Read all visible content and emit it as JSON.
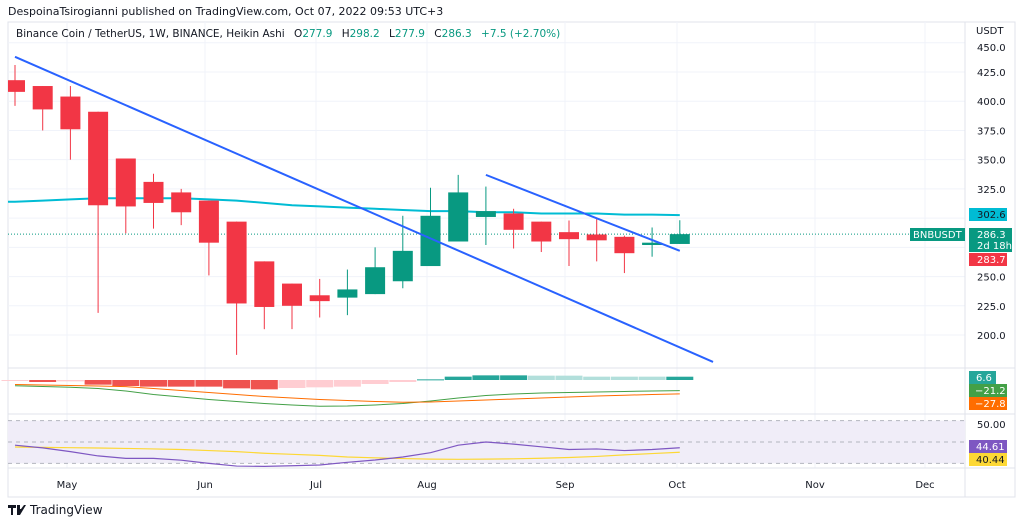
{
  "header": {
    "publisher_line": "DespoinaTsirogianni published on TradingView.com, Oct 07, 2022 09:53 UTC+3"
  },
  "legend": {
    "symbol": "Binance Coin / TetherUS, 1W, BINANCE, Heikin Ashi",
    "open_label": "O",
    "open": "277.9",
    "high_label": "H",
    "high": "298.2",
    "low_label": "L",
    "low": "277.9",
    "close_label": "C",
    "close": "286.3",
    "change": "+7.5 (+2.70%)"
  },
  "price_axis": {
    "currency": "USDT",
    "ticks": [
      "450.0",
      "425.0",
      "400.0",
      "375.0",
      "350.0",
      "325.0",
      "250.0",
      "225.0",
      "200.0"
    ]
  },
  "time_axis": {
    "labels": [
      "May",
      "Jun",
      "Jul",
      "Aug",
      "Sep",
      "Oct",
      "Nov",
      "Dec"
    ]
  },
  "price_labels": {
    "ma": "302.6",
    "ticker": "BNBUSDT",
    "last": "286.3",
    "countdown": "2d 18h",
    "prev": "283.7"
  },
  "macd_labels": {
    "hist": "6.6",
    "macd": "−21.2",
    "signal": "−27.8"
  },
  "rsi_labels": {
    "mid": "50.00",
    "rsi": "44.61",
    "rsi_ma": "40.44"
  },
  "colors": {
    "up": "#089981",
    "down": "#f23645",
    "ma": "#00bcd4",
    "trendline": "#2962ff",
    "macd": "#43a047",
    "signal": "#ff6d00",
    "rsi": "#7e57c2",
    "rsi_ma": "#fdd835"
  },
  "footer": {
    "brand": "TradingView"
  },
  "chart_data": [
    {
      "type": "candlestick",
      "title": "Binance Coin / TetherUS, 1W, BINANCE, Heikin Ashi",
      "ylabel": "USDT",
      "ylim": [
        175,
        450
      ],
      "x_tick_labels": [
        "May",
        "Jun",
        "Jul",
        "Aug",
        "Sep",
        "Oct",
        "Nov",
        "Dec"
      ],
      "ohlc": [
        [
          418,
          431,
          396,
          408
        ],
        [
          413,
          413,
          375,
          393
        ],
        [
          404,
          413,
          350,
          376
        ],
        [
          391,
          391,
          219,
          311
        ],
        [
          351,
          351,
          287,
          310
        ],
        [
          331,
          338,
          291,
          313
        ],
        [
          322,
          325,
          294,
          305
        ],
        [
          315,
          315,
          251,
          279
        ],
        [
          297,
          297,
          183,
          227
        ],
        [
          263,
          263,
          205,
          224
        ],
        [
          244,
          244,
          205,
          225
        ],
        [
          234,
          248,
          215,
          229
        ],
        [
          232,
          256,
          217,
          239
        ],
        [
          235,
          275,
          235,
          258
        ],
        [
          246,
          302,
          240,
          272
        ],
        [
          259,
          326,
          259,
          302
        ],
        [
          280,
          337,
          280,
          322
        ],
        [
          301,
          327,
          277,
          306
        ],
        [
          304,
          308,
          274,
          290
        ],
        [
          297,
          297,
          271,
          280
        ],
        [
          288,
          298,
          259,
          282
        ],
        [
          286,
          300,
          263,
          281
        ],
        [
          284,
          285,
          253,
          270
        ],
        [
          277,
          292,
          267,
          279
        ],
        [
          277.9,
          298.2,
          277.9,
          286.3
        ]
      ],
      "moving_average": [
        314,
        315,
        316,
        317,
        317,
        317,
        317,
        316,
        315,
        313,
        311,
        310,
        309,
        308,
        307,
        306,
        306,
        305,
        305,
        304,
        304,
        304,
        303,
        303,
        302.6
      ],
      "trendlines": [
        {
          "from": {
            "bar": 0,
            "price": 438
          },
          "to": {
            "bar": 25.2,
            "price": 177
          }
        },
        {
          "from": {
            "bar": 17,
            "price": 337
          },
          "to": {
            "bar": 24,
            "price": 272
          }
        }
      ],
      "last_price": 286.3
    },
    {
      "type": "bar",
      "title": "MACD",
      "histogram": [
        -2,
        -4,
        -2.7,
        -9.3,
        -12,
        -13.3,
        -13.3,
        -13.3,
        -16.7,
        -18.7,
        -16,
        -14.7,
        -13.3,
        -8,
        -4,
        1.3,
        6.7,
        9.3,
        9.3,
        8.7,
        8.7,
        6.7,
        6.7,
        6.7,
        6.6
      ],
      "histogram_colors": [
        "light-down",
        "down",
        "light-down",
        "down",
        "down",
        "down",
        "down",
        "down",
        "down",
        "down",
        "light-down",
        "light-down",
        "light-down",
        "light-down",
        "light-down",
        "up",
        "up",
        "up",
        "up",
        "light-up",
        "light-up",
        "light-up",
        "light-up",
        "light-up",
        "up"
      ],
      "macd": [
        -11.5,
        -13,
        -14.5,
        -17,
        -22,
        -29,
        -34,
        -39,
        -43,
        -47,
        -50,
        -52.5,
        -52,
        -50,
        -47,
        -42,
        -36,
        -31,
        -28,
        -26,
        -25,
        -24,
        -23,
        -22,
        -21.2
      ],
      "signal": [
        -9,
        -10,
        -11,
        -12,
        -13.3,
        -17,
        -21,
        -25,
        -29,
        -33,
        -36,
        -39,
        -41,
        -43,
        -44.5,
        -44,
        -42,
        -40,
        -38,
        -36,
        -34,
        -32,
        -30.5,
        -29,
        -27.8
      ]
    },
    {
      "type": "line",
      "title": "RSI",
      "bands": [
        30,
        50,
        70
      ],
      "rsi": [
        47,
        44.5,
        41,
        37,
        34.7,
        34.7,
        33,
        30,
        27.5,
        27.2,
        27.8,
        28.5,
        31,
        33.2,
        36,
        40,
        47,
        50,
        48,
        45.5,
        43,
        43.5,
        42,
        43,
        44.61
      ],
      "rsi_ma": [
        45.3,
        45,
        44.7,
        44.4,
        44,
        43.5,
        43,
        42,
        41,
        39.5,
        38.5,
        37.5,
        36,
        35.2,
        34.5,
        34,
        33.8,
        34,
        34.3,
        34.8,
        35.5,
        36.5,
        38,
        39.2,
        40.44
      ]
    }
  ]
}
